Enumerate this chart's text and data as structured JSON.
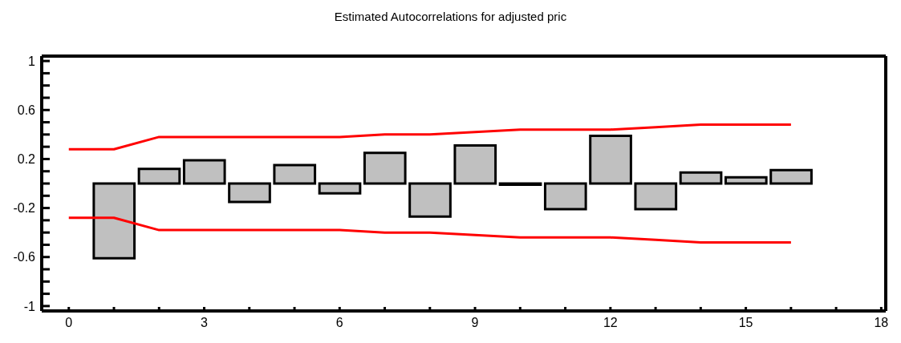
{
  "chart_data": {
    "type": "bar",
    "title": "Estimated Autocorrelations for adjusted pric",
    "xlim": [
      -0.6,
      18.1
    ],
    "xticks": [
      0,
      {
        "value": 1,
        "label": null
      },
      {
        "value": 2,
        "label": null
      },
      3,
      {
        "value": 4,
        "label": null
      },
      {
        "value": 5,
        "label": null
      },
      6,
      {
        "value": 7,
        "label": null
      },
      {
        "value": 8,
        "label": null
      },
      9,
      {
        "value": 10,
        "label": null
      },
      {
        "value": 11,
        "label": null
      },
      12,
      {
        "value": 13,
        "label": null
      },
      {
        "value": 14,
        "label": null
      },
      15,
      {
        "value": 16,
        "label": null
      },
      {
        "value": 17,
        "label": null
      },
      18
    ],
    "ylim": [
      -1.04,
      1.04
    ],
    "yticks": [
      -1,
      {
        "value": -0.9,
        "label": null
      },
      {
        "value": -0.8,
        "label": null
      },
      {
        "value": -0.7,
        "label": null
      },
      -0.6,
      {
        "value": -0.5,
        "label": null
      },
      {
        "value": -0.4,
        "label": null
      },
      {
        "value": -0.3,
        "label": null
      },
      -0.2,
      {
        "value": -0.1,
        "label": null
      },
      {
        "value": 0,
        "label": null
      },
      {
        "value": 0.1,
        "label": null
      },
      0.2,
      {
        "value": 0.3,
        "label": null
      },
      {
        "value": 0.4,
        "label": null
      },
      {
        "value": 0.5,
        "label": null
      },
      0.6,
      {
        "value": 0.7,
        "label": null
      },
      {
        "value": 0.8,
        "label": null
      },
      {
        "value": 0.9,
        "label": null
      },
      1
    ],
    "marker": "none",
    "line_style": "solid",
    "series": [
      {
        "color": "#c0c0c0",
        "x": [
          1,
          2,
          3,
          4,
          5,
          6,
          7,
          8,
          9,
          10,
          11,
          12,
          13,
          14,
          15,
          16
        ],
        "values": [
          -0.61,
          0.12,
          0.19,
          -0.15,
          0.15,
          -0.08,
          0.25,
          -0.27,
          0.31,
          -0.01,
          -0.21,
          0.39,
          -0.21,
          0.09,
          0.05,
          0.11
        ]
      },
      {
        "type": "line",
        "color": "#ff0000",
        "x": [
          0,
          1,
          2,
          3,
          4,
          5,
          6,
          7,
          8,
          9,
          10,
          11,
          12,
          13,
          14,
          15,
          16
        ],
        "values": [
          0.28,
          0.28,
          0.38,
          0.38,
          0.38,
          0.38,
          0.38,
          0.4,
          0.4,
          0.42,
          0.44,
          0.44,
          0.44,
          0.46,
          0.48,
          0.48,
          0.48
        ]
      },
      {
        "type": "line",
        "color": "#ff0000",
        "x": [
          0,
          1,
          2,
          3,
          4,
          5,
          6,
          7,
          8,
          9,
          10,
          11,
          12,
          13,
          14,
          15,
          16
        ],
        "values": [
          -0.28,
          -0.28,
          -0.38,
          -0.38,
          -0.38,
          -0.38,
          -0.38,
          -0.4,
          -0.4,
          -0.42,
          -0.44,
          -0.44,
          -0.44,
          -0.46,
          -0.48,
          -0.48,
          -0.48
        ]
      }
    ]
  }
}
